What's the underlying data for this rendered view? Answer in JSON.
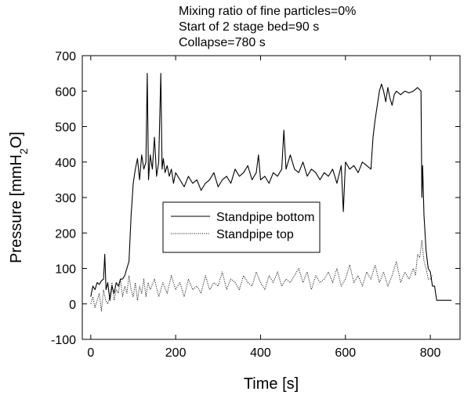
{
  "chart_data": {
    "type": "line",
    "xlabel": "Time [s]",
    "ylabel": "Pressure [mmH",
    "ylabel_sub": "2",
    "ylabel_end": "O]",
    "xlim": [
      -20,
      870
    ],
    "ylim": [
      -100,
      700
    ],
    "xticks": [
      "0",
      "200",
      "400",
      "600",
      "800"
    ],
    "yticks": [
      "-100",
      "0",
      "100",
      "200",
      "300",
      "400",
      "500",
      "600",
      "700"
    ],
    "annotations": [
      "Mixing ratio of fine particles=0%",
      "Start of 2 stage bed=90 s",
      "Collapse=780 s"
    ],
    "legend": {
      "position": "center",
      "entries": [
        "Standpipe bottom",
        "Standpipe top"
      ]
    },
    "grid": false,
    "series": [
      {
        "name": "Standpipe bottom",
        "style": "solid",
        "color": "#000000",
        "x": [
          0,
          5,
          10,
          15,
          20,
          25,
          30,
          33,
          36,
          40,
          45,
          50,
          55,
          60,
          65,
          70,
          75,
          80,
          85,
          90,
          95,
          100,
          105,
          110,
          115,
          120,
          125,
          130,
          133,
          136,
          140,
          145,
          150,
          155,
          160,
          165,
          168,
          171,
          175,
          180,
          185,
          190,
          195,
          200,
          210,
          220,
          230,
          240,
          250,
          260,
          270,
          280,
          290,
          300,
          310,
          320,
          330,
          340,
          350,
          360,
          370,
          380,
          390,
          395,
          400,
          410,
          420,
          430,
          440,
          450,
          455,
          460,
          470,
          480,
          490,
          500,
          510,
          520,
          530,
          540,
          550,
          560,
          570,
          580,
          590,
          595,
          600,
          610,
          620,
          630,
          640,
          650,
          660,
          665,
          670,
          675,
          680,
          685,
          690,
          695,
          700,
          705,
          710,
          715,
          720,
          730,
          740,
          750,
          760,
          770,
          778,
          780,
          782,
          785,
          790,
          795,
          800,
          805,
          810,
          815,
          820,
          830,
          840,
          850
        ],
        "y": [
          20,
          50,
          40,
          60,
          55,
          65,
          70,
          140,
          40,
          60,
          10,
          50,
          30,
          60,
          50,
          70,
          70,
          80,
          100,
          120,
          250,
          340,
          380,
          410,
          350,
          420,
          380,
          400,
          650,
          350,
          420,
          380,
          470,
          360,
          400,
          650,
          380,
          410,
          370,
          390,
          360,
          380,
          340,
          370,
          350,
          330,
          360,
          340,
          350,
          320,
          340,
          350,
          370,
          330,
          350,
          360,
          340,
          380,
          360,
          370,
          390,
          350,
          370,
          420,
          350,
          360,
          340,
          370,
          360,
          380,
          490,
          380,
          420,
          380,
          370,
          400,
          360,
          380,
          370,
          350,
          370,
          360,
          380,
          340,
          390,
          260,
          400,
          380,
          390,
          370,
          400,
          390,
          380,
          470,
          520,
          560,
          600,
          620,
          600,
          570,
          610,
          580,
          560,
          590,
          600,
          590,
          600,
          595,
          600,
          610,
          600,
          300,
          390,
          250,
          150,
          100,
          90,
          50,
          50,
          10,
          10,
          10,
          10,
          10
        ]
      },
      {
        "name": "Standpipe top",
        "style": "dotted",
        "color": "#000000",
        "x": [
          0,
          5,
          10,
          15,
          20,
          25,
          30,
          35,
          40,
          45,
          50,
          55,
          60,
          65,
          70,
          75,
          80,
          85,
          90,
          95,
          100,
          105,
          110,
          115,
          120,
          125,
          130,
          135,
          140,
          150,
          160,
          170,
          180,
          190,
          200,
          210,
          220,
          230,
          240,
          250,
          260,
          270,
          280,
          290,
          300,
          310,
          320,
          330,
          340,
          350,
          360,
          370,
          380,
          390,
          400,
          410,
          420,
          430,
          440,
          450,
          460,
          470,
          480,
          490,
          500,
          510,
          520,
          530,
          540,
          550,
          560,
          570,
          580,
          590,
          600,
          610,
          620,
          630,
          640,
          650,
          660,
          670,
          680,
          690,
          700,
          710,
          720,
          730,
          740,
          750,
          760,
          765,
          770,
          775,
          780,
          785,
          790,
          795,
          800,
          805
        ],
        "y": [
          0,
          20,
          -10,
          10,
          30,
          -20,
          40,
          10,
          0,
          20,
          60,
          10,
          40,
          30,
          70,
          20,
          50,
          30,
          80,
          40,
          20,
          60,
          10,
          50,
          30,
          70,
          20,
          60,
          40,
          70,
          20,
          60,
          30,
          80,
          40,
          60,
          20,
          70,
          40,
          50,
          30,
          80,
          40,
          60,
          50,
          90,
          40,
          70,
          60,
          40,
          80,
          60,
          50,
          90,
          60,
          40,
          80,
          60,
          90,
          50,
          70,
          60,
          80,
          100,
          60,
          90,
          40,
          80,
          60,
          70,
          90,
          60,
          100,
          50,
          70,
          110,
          60,
          80,
          50,
          90,
          70,
          110,
          60,
          90,
          50,
          80,
          120,
          60,
          90,
          70,
          100,
          80,
          140,
          130,
          180,
          120,
          100,
          70,
          70,
          80
        ]
      }
    ]
  }
}
